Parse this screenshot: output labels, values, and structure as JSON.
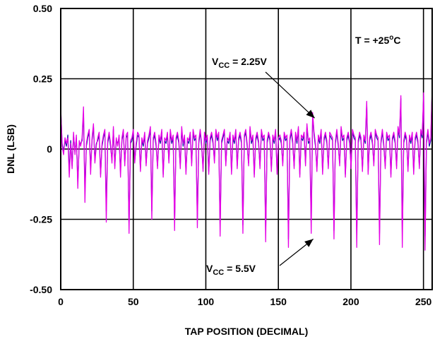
{
  "chart_data": {
    "type": "line",
    "title": "",
    "xlabel": "TAP POSITION (DECIMAL)",
    "ylabel": "DNL (LSB)",
    "xlim": [
      0,
      256
    ],
    "ylim": [
      -0.5,
      0.5
    ],
    "xticks": [
      0,
      50,
      100,
      150,
      200,
      250
    ],
    "xtick_labels": [
      "0",
      "50",
      "100",
      "150",
      "200",
      "250"
    ],
    "yticks": [
      -0.5,
      -0.25,
      0,
      0.25,
      0.5
    ],
    "ytick_labels": [
      "-0.50",
      "-0.25",
      "0",
      "0.25",
      "0.50"
    ],
    "grid": true,
    "colors": {
      "series_a": "#1a1aa8",
      "series_b": "#e600e6",
      "grid": "#000000"
    },
    "annotations": [
      {
        "main": "V",
        "sub": "CC",
        "rest": " = 2.25V",
        "x": 176,
        "y": 0.12
      },
      {
        "main": "V",
        "sub": "CC",
        "rest": " = 5.5V",
        "x": 176,
        "y": -0.3
      }
    ],
    "temperature_label": {
      "main": "T = +25",
      "sup": "o",
      "rest": "C"
    },
    "series": [
      {
        "values": [
          0.14,
          0.02,
          -0.01,
          0.03,
          0.01,
          0.05,
          -0.08,
          0.03,
          -0.06,
          0.05,
          -0.01,
          0.04,
          -0.12,
          0.02,
          0.02,
          0.03,
          0.13,
          -0.15,
          0.01,
          0.04,
          0.06,
          -0.07,
          0.03,
          0.08,
          -0.04,
          0.02,
          0.03,
          0.05,
          -0.09,
          0.01,
          0.04,
          0.06,
          -0.22,
          0.02,
          0.05,
          0.01,
          -0.04,
          0.07,
          -0.06,
          0.03,
          0.02,
          0.04,
          -0.08,
          0.03,
          0.06,
          -0.05,
          0.04,
          0.05,
          -0.28,
          0.02,
          0.03,
          0.06,
          -0.04,
          0.01,
          0.05,
          0.04,
          -0.07,
          0.03,
          0.01,
          0.05,
          -0.05,
          0.02,
          0.04,
          0.07,
          -0.22,
          0.03,
          0.05,
          0.01,
          -0.06,
          0.04,
          0.02,
          0.06,
          -0.09,
          0.03,
          0.02,
          0.05,
          -0.04,
          0.06,
          0.02,
          0.04,
          -0.26,
          0.03,
          0.05,
          0.02,
          -0.06,
          0.07,
          0.01,
          0.04,
          -0.08,
          0.03,
          0.02,
          0.05,
          -0.05,
          0.06,
          0.03,
          0.04,
          -0.25,
          0.02,
          0.06,
          0.01,
          -0.07,
          0.05,
          0.02,
          0.04,
          -0.08,
          0.03,
          0.05,
          0.02,
          -0.04,
          0.06,
          0.03,
          0.05,
          -0.28,
          0.02,
          0.04,
          0.06,
          -0.05,
          0.03,
          0.02,
          0.05,
          -0.08,
          0.04,
          0.02,
          0.06,
          -0.06,
          0.03,
          0.05,
          0.02,
          -0.27,
          0.04,
          0.06,
          0.01,
          -0.05,
          0.07,
          0.02,
          0.04,
          -0.09,
          0.03,
          0.05,
          0.02,
          -0.06,
          0.06,
          0.03,
          0.04,
          -0.3,
          0.02,
          0.05,
          0.03,
          -0.07,
          0.04,
          0.02,
          0.06,
          -0.08,
          0.03,
          0.04,
          0.02,
          -0.05,
          0.05,
          0.03,
          0.04,
          -0.32,
          0.03,
          0.06,
          0.02,
          -0.06,
          0.05,
          0.02,
          0.07,
          -0.09,
          0.04,
          0.03,
          0.05,
          -0.05,
          0.08,
          0.02,
          0.03,
          -0.27,
          0.12,
          0.05,
          0.01,
          -0.07,
          0.04,
          0.02,
          0.06,
          -0.08,
          0.03,
          0.05,
          0.02,
          -0.06,
          0.05,
          0.04,
          0.03,
          -0.29,
          0.02,
          0.06,
          0.01,
          -0.05,
          0.07,
          0.03,
          0.04,
          -0.09,
          0.03,
          0.05,
          0.02,
          -0.06,
          0.06,
          0.04,
          0.03,
          -0.31,
          0.02,
          0.05,
          0.03,
          -0.07,
          0.04,
          0.02,
          0.16,
          -0.08,
          0.03,
          0.05,
          0.02,
          -0.05,
          0.06,
          0.04,
          0.03,
          -0.3,
          0.02,
          0.06,
          0.01,
          -0.06,
          0.05,
          0.03,
          0.04,
          -0.09,
          0.03,
          0.05,
          0.02,
          -0.06,
          0.07,
          0.04,
          0.18,
          -0.3,
          0.02,
          0.05,
          0.03,
          -0.07,
          0.04,
          0.02,
          0.05,
          -0.08,
          0.03,
          0.05,
          0.02,
          -0.06,
          0.06,
          0.04,
          0.19,
          -0.31,
          0.02,
          0.06,
          0.01,
          0.03,
          0.21
        ]
      },
      {
        "values": [
          0.15,
          0.01,
          -0.02,
          0.04,
          0.02,
          0.04,
          -0.1,
          0.02,
          -0.07,
          0.06,
          -0.02,
          0.05,
          -0.14,
          0.03,
          0.01,
          0.04,
          0.15,
          -0.19,
          0.02,
          0.05,
          0.07,
          -0.09,
          0.04,
          0.09,
          -0.05,
          0.01,
          0.04,
          0.06,
          -0.1,
          0.02,
          0.05,
          0.07,
          -0.26,
          0.03,
          0.06,
          0.02,
          -0.05,
          0.08,
          -0.07,
          0.04,
          0.01,
          0.05,
          -0.1,
          0.04,
          0.07,
          -0.06,
          0.05,
          0.06,
          -0.3,
          0.03,
          0.04,
          0.07,
          -0.05,
          0.02,
          0.06,
          0.05,
          -0.08,
          0.04,
          0.02,
          0.06,
          -0.06,
          0.03,
          0.05,
          0.08,
          -0.25,
          0.04,
          0.06,
          0.02,
          -0.07,
          0.05,
          0.03,
          0.07,
          -0.1,
          0.04,
          0.03,
          0.06,
          -0.05,
          0.07,
          0.03,
          0.05,
          -0.29,
          0.04,
          0.06,
          0.03,
          -0.07,
          0.08,
          0.02,
          0.05,
          -0.09,
          0.04,
          0.03,
          0.06,
          -0.06,
          0.07,
          0.04,
          0.05,
          -0.28,
          0.03,
          0.07,
          0.02,
          -0.08,
          0.06,
          0.03,
          0.05,
          -0.09,
          0.04,
          0.06,
          0.03,
          -0.05,
          0.07,
          0.04,
          0.06,
          -0.31,
          0.03,
          0.05,
          0.07,
          -0.06,
          0.04,
          0.03,
          0.06,
          -0.09,
          0.05,
          0.03,
          0.07,
          -0.07,
          0.04,
          0.06,
          0.03,
          -0.3,
          0.05,
          0.07,
          0.02,
          -0.06,
          0.08,
          0.03,
          0.05,
          -0.1,
          0.04,
          0.06,
          0.03,
          -0.07,
          0.07,
          0.04,
          0.05,
          -0.33,
          0.03,
          0.06,
          0.04,
          -0.08,
          0.05,
          0.03,
          0.07,
          -0.09,
          0.04,
          0.05,
          0.03,
          -0.06,
          0.06,
          0.04,
          0.05,
          -0.35,
          0.04,
          0.07,
          0.03,
          -0.07,
          0.06,
          0.03,
          0.08,
          -0.1,
          0.05,
          0.04,
          0.06,
          -0.06,
          0.09,
          0.03,
          0.04,
          -0.3,
          0.13,
          0.06,
          0.02,
          -0.08,
          0.05,
          0.03,
          0.07,
          -0.09,
          0.04,
          0.06,
          0.03,
          -0.07,
          0.06,
          0.05,
          0.04,
          -0.32,
          0.03,
          0.07,
          0.02,
          -0.06,
          0.08,
          0.04,
          0.05,
          -0.1,
          0.04,
          0.06,
          0.03,
          -0.07,
          0.07,
          0.05,
          0.04,
          -0.35,
          0.03,
          0.06,
          0.04,
          -0.08,
          0.05,
          0.03,
          0.17,
          -0.09,
          0.04,
          0.06,
          0.03,
          -0.06,
          0.07,
          0.05,
          0.04,
          -0.34,
          0.03,
          0.07,
          0.02,
          -0.07,
          0.06,
          0.04,
          0.05,
          -0.1,
          0.04,
          0.06,
          0.03,
          -0.07,
          0.08,
          0.05,
          0.19,
          -0.35,
          0.03,
          0.06,
          0.04,
          -0.08,
          0.05,
          0.03,
          0.06,
          -0.09,
          0.04,
          0.06,
          0.03,
          -0.07,
          0.07,
          0.05,
          0.2,
          -0.36,
          0.03,
          0.07,
          0.02,
          0.04,
          0.22
        ]
      }
    ]
  }
}
